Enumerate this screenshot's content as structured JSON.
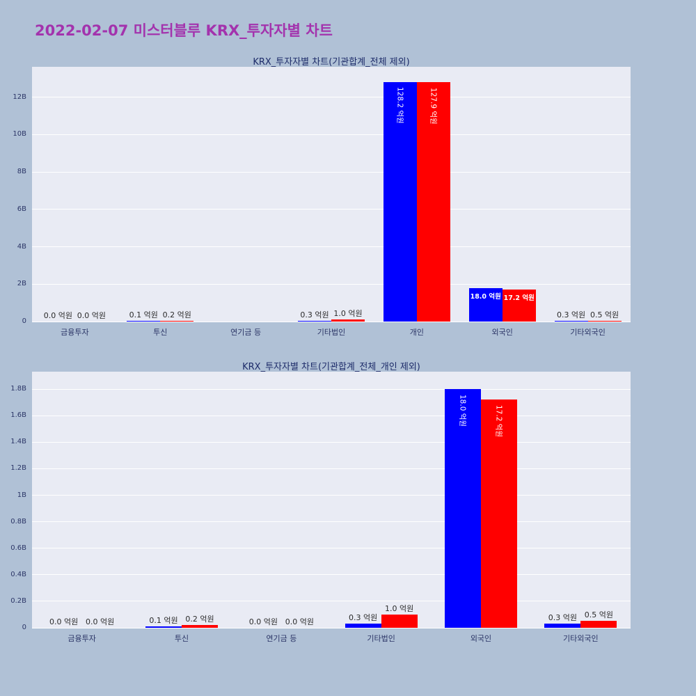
{
  "page": {
    "title": "2022-02-07 미스터블루 KRX_투자자별 차트"
  },
  "colors": {
    "background": "#b0c1d6",
    "page_title": "#a333ad",
    "panel": "#e9ebf4",
    "gridline": "#ffffff",
    "axis_text": "#2b3566",
    "chart_title": "#1d2b69",
    "bar_blue": "#0000ff",
    "bar_red": "#ff0000",
    "label_dark": "#2a2a2a",
    "label_light": "#ffffff"
  },
  "chart_data": [
    {
      "type": "bar",
      "title": "KRX_투자자별 차트(기관합계_전체 제외)",
      "value_unit": "억원",
      "axis_unit": "B",
      "grid": true,
      "legend": "none",
      "ylim_b": [
        0,
        13.62
      ],
      "yticks": [
        {
          "v": 0,
          "label": "0"
        },
        {
          "v": 2,
          "label": "2B"
        },
        {
          "v": 4,
          "label": "4B"
        },
        {
          "v": 6,
          "label": "6B"
        },
        {
          "v": 8,
          "label": "8B"
        },
        {
          "v": 10,
          "label": "10B"
        },
        {
          "v": 12,
          "label": "12B"
        }
      ],
      "categories": [
        "금융투자",
        "투신",
        "연기금 등",
        "기타법인",
        "개인",
        "외국인",
        "기타외국인"
      ],
      "series": [
        {
          "name": "series-blue",
          "color": "#0000ff",
          "values_b": [
            0,
            0.01,
            0,
            0.03,
            12.82,
            1.8,
            0.03
          ],
          "labels": [
            "0.0 억원",
            "0.1 억원",
            "",
            "0.3 억원",
            "128.2 억원",
            "18.0 억원",
            "0.3 억원"
          ]
        },
        {
          "name": "series-red",
          "color": "#ff0000",
          "values_b": [
            0,
            0.02,
            0,
            0.1,
            12.79,
            1.72,
            0.05
          ],
          "labels": [
            "0.0 억원",
            "0.2 억원",
            "",
            "1.0 억원",
            "127.9 억원",
            "17.2 억원",
            "0.5 억원"
          ]
        }
      ]
    },
    {
      "type": "bar",
      "title": "KRX_투자자별 차트(기관합계_전체_개인 제외)",
      "value_unit": "억원",
      "axis_unit": "B",
      "grid": true,
      "legend": "none",
      "ylim_b": [
        0,
        1.932
      ],
      "yticks": [
        {
          "v": 0,
          "label": "0"
        },
        {
          "v": 0.2,
          "label": "0.2B"
        },
        {
          "v": 0.4,
          "label": "0.4B"
        },
        {
          "v": 0.6,
          "label": "0.6B"
        },
        {
          "v": 0.8,
          "label": "0.8B"
        },
        {
          "v": 1,
          "label": "1B"
        },
        {
          "v": 1.2,
          "label": "1.2B"
        },
        {
          "v": 1.4,
          "label": "1.4B"
        },
        {
          "v": 1.6,
          "label": "1.6B"
        },
        {
          "v": 1.8,
          "label": "1.8B"
        }
      ],
      "categories": [
        "금융투자",
        "투신",
        "연기금 등",
        "기타법인",
        "외국인",
        "기타외국인"
      ],
      "series": [
        {
          "name": "series-blue",
          "color": "#0000ff",
          "values_b": [
            0,
            0.01,
            0,
            0.03,
            1.8,
            0.03
          ],
          "labels": [
            "0.0 억원",
            "0.1 억원",
            "0.0 억원",
            "0.3 억원",
            "18.0 억원",
            "0.3 억원"
          ]
        },
        {
          "name": "series-red",
          "color": "#ff0000",
          "values_b": [
            0,
            0.02,
            0,
            0.1,
            1.72,
            0.05
          ],
          "labels": [
            "0.0 억원",
            "0.2 억원",
            "0.0 억원",
            "1.0 억원",
            "17.2 억원",
            "0.5 억원"
          ]
        }
      ]
    }
  ]
}
